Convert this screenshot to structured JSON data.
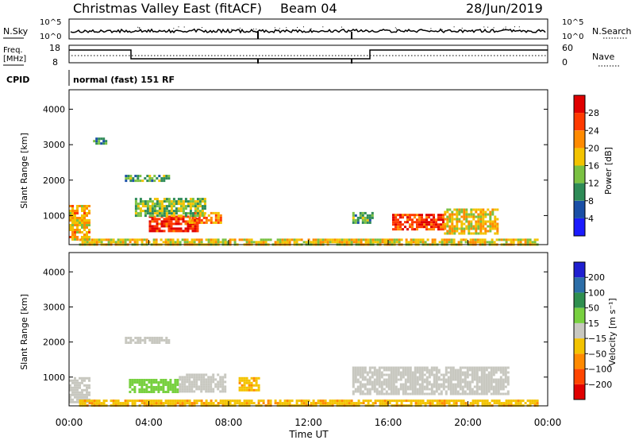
{
  "header": {
    "station": "Christmas Valley East (fitACF)",
    "beam": "Beam 04",
    "date": "28/Jun/2019"
  },
  "noise_panel": {
    "left_label": "N.Sky",
    "right_label": "N.Search",
    "left_ticks": [
      "10^5",
      "10^0"
    ],
    "right_ticks": [
      "10^5",
      "10^0"
    ]
  },
  "freq_panel": {
    "left_label_1": "Freq.",
    "left_label_2": "[MHz]",
    "right_label": "Nave",
    "left_ticks": [
      "18",
      "8"
    ],
    "right_ticks": [
      "60",
      "0"
    ]
  },
  "cpid": {
    "label": "CPID",
    "text": "normal (fast) 151 RF"
  },
  "power_panel": {
    "ylabel": "Slant Range [km]",
    "yticks": [
      "4000",
      "3000",
      "2000",
      "1000"
    ],
    "cbar_label": "Power [dB]",
    "cbar_ticks": [
      "28",
      "24",
      "20",
      "16",
      "12",
      "8",
      "4"
    ],
    "colors": [
      "#1b1bff",
      "#1a4fa6",
      "#2e8b57",
      "#7ac142",
      "#f3c300",
      "#ff8a00",
      "#ff3a00",
      "#e00000"
    ]
  },
  "velocity_panel": {
    "ylabel": "Slant Range [km]",
    "yticks": [
      "4000",
      "3000",
      "2000",
      "1000"
    ],
    "cbar_label": "Velocity [m s⁻¹]",
    "cbar_ticks": [
      "200",
      "100",
      "50",
      "15",
      "−15",
      "−50",
      "−100",
      "−200"
    ],
    "colors": [
      "#1f1fd0",
      "#2c6ea8",
      "#2f8f4f",
      "#78d040",
      "#c8c8c0",
      "#f3c300",
      "#ff8a00",
      "#ff4500",
      "#e00000"
    ]
  },
  "xaxis": {
    "label": "Time UT",
    "ticks": [
      "00:00",
      "04:00",
      "08:00",
      "12:00",
      "16:00",
      "20:00",
      "00:00"
    ]
  },
  "chart_data": [
    {
      "type": "heatmap",
      "title": "Christmas Valley East (fitACF) Beam 04 28/Jun/2019",
      "xlabel": "Time UT",
      "ylabel": "Slant Range [km]",
      "xlim": [
        0,
        24
      ],
      "ylim": [
        180,
        4550
      ],
      "colorbar": {
        "label": "Power [dB]",
        "range": [
          0,
          32
        ]
      },
      "regions": [
        {
          "t": [
            0.0,
            1.0
          ],
          "r": [
            300,
            1300
          ],
          "value": 20
        },
        {
          "t": [
            1.2,
            1.8
          ],
          "r": [
            3050,
            3200
          ],
          "value": 10
        },
        {
          "t": [
            4.0,
            6.5
          ],
          "r": [
            550,
            1000
          ],
          "value": 28
        },
        {
          "t": [
            6.0,
            7.6
          ],
          "r": [
            800,
            1100
          ],
          "value": 22
        },
        {
          "t": [
            3.3,
            6.8
          ],
          "r": [
            1000,
            1500
          ],
          "value": 14
        },
        {
          "t": [
            2.8,
            5.0
          ],
          "r": [
            1950,
            2150
          ],
          "value": 12
        },
        {
          "t": [
            14.2,
            15.2
          ],
          "r": [
            800,
            1100
          ],
          "value": 12
        },
        {
          "t": [
            16.2,
            18.8
          ],
          "r": [
            600,
            1050
          ],
          "value": 27
        },
        {
          "t": [
            18.8,
            21.5
          ],
          "r": [
            500,
            1200
          ],
          "value": 18
        },
        {
          "t": [
            0.5,
            23.5
          ],
          "r": [
            200,
            350
          ],
          "value": 18
        }
      ]
    },
    {
      "type": "heatmap",
      "title": "Christmas Valley East (fitACF) Beam 04 28/Jun/2019",
      "xlabel": "Time UT",
      "ylabel": "Slant Range [km]",
      "xlim": [
        0,
        24
      ],
      "ylim": [
        180,
        4550
      ],
      "colorbar": {
        "label": "Velocity [m s⁻¹]",
        "range": [
          -200,
          200
        ]
      },
      "regions": [
        {
          "t": [
            0.0,
            1.0
          ],
          "r": [
            300,
            1000
          ],
          "value": 0
        },
        {
          "t": [
            3.0,
            5.5
          ],
          "r": [
            550,
            950
          ],
          "value": 30
        },
        {
          "t": [
            5.5,
            7.8
          ],
          "r": [
            600,
            1100
          ],
          "value": 0
        },
        {
          "t": [
            8.5,
            9.5
          ],
          "r": [
            600,
            1000
          ],
          "value": -40
        },
        {
          "t": [
            2.8,
            5.0
          ],
          "r": [
            1950,
            2150
          ],
          "value": 0
        },
        {
          "t": [
            14.2,
            22.0
          ],
          "r": [
            500,
            1300
          ],
          "value": 0
        },
        {
          "t": [
            0.5,
            23.5
          ],
          "r": [
            200,
            360
          ],
          "value": -40
        }
      ]
    }
  ]
}
